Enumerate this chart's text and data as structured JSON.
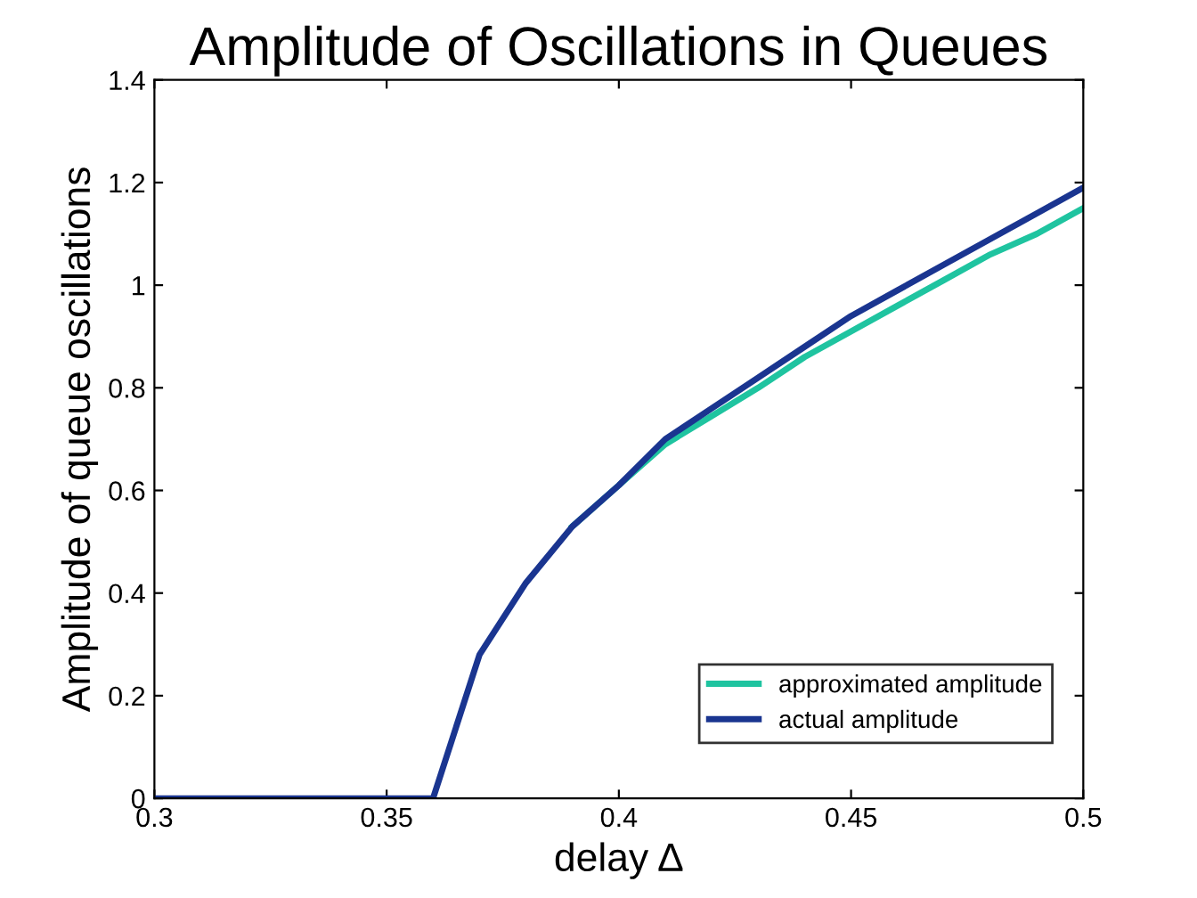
{
  "chart_data": {
    "type": "line",
    "title": "Amplitude of Oscillations in Queues",
    "xlabel": "delay Δ",
    "ylabel": "Amplitude of queue oscillations",
    "x": [
      0.3,
      0.31,
      0.32,
      0.33,
      0.34,
      0.35,
      0.36,
      0.37,
      0.38,
      0.39,
      0.4,
      0.41,
      0.42,
      0.43,
      0.44,
      0.45,
      0.46,
      0.47,
      0.48,
      0.49,
      0.5
    ],
    "series": [
      {
        "name": "approximated amplitude",
        "color": "#1fc4a0",
        "values": [
          null,
          null,
          null,
          null,
          null,
          null,
          null,
          null,
          null,
          0.53,
          0.61,
          0.69,
          0.745,
          0.8,
          0.86,
          0.91,
          0.96,
          1.01,
          1.06,
          1.1,
          1.15
        ]
      },
      {
        "name": "actual amplitude",
        "color": "#1a3590",
        "values": [
          0,
          0,
          0,
          0,
          0,
          0,
          0,
          0.28,
          0.42,
          0.53,
          0.61,
          0.7,
          0.76,
          0.82,
          0.88,
          0.94,
          0.99,
          1.04,
          1.09,
          1.14,
          1.19
        ]
      }
    ],
    "xlim": [
      0.3,
      0.5
    ],
    "xticks": [
      0.3,
      0.35,
      0.4,
      0.45,
      0.5
    ],
    "ylim": [
      0,
      1.4
    ],
    "yticks": [
      0,
      0.2,
      0.4,
      0.6,
      0.8,
      1,
      1.2,
      1.4
    ],
    "grid": false,
    "legend": "lower right",
    "line_style": "solid"
  }
}
